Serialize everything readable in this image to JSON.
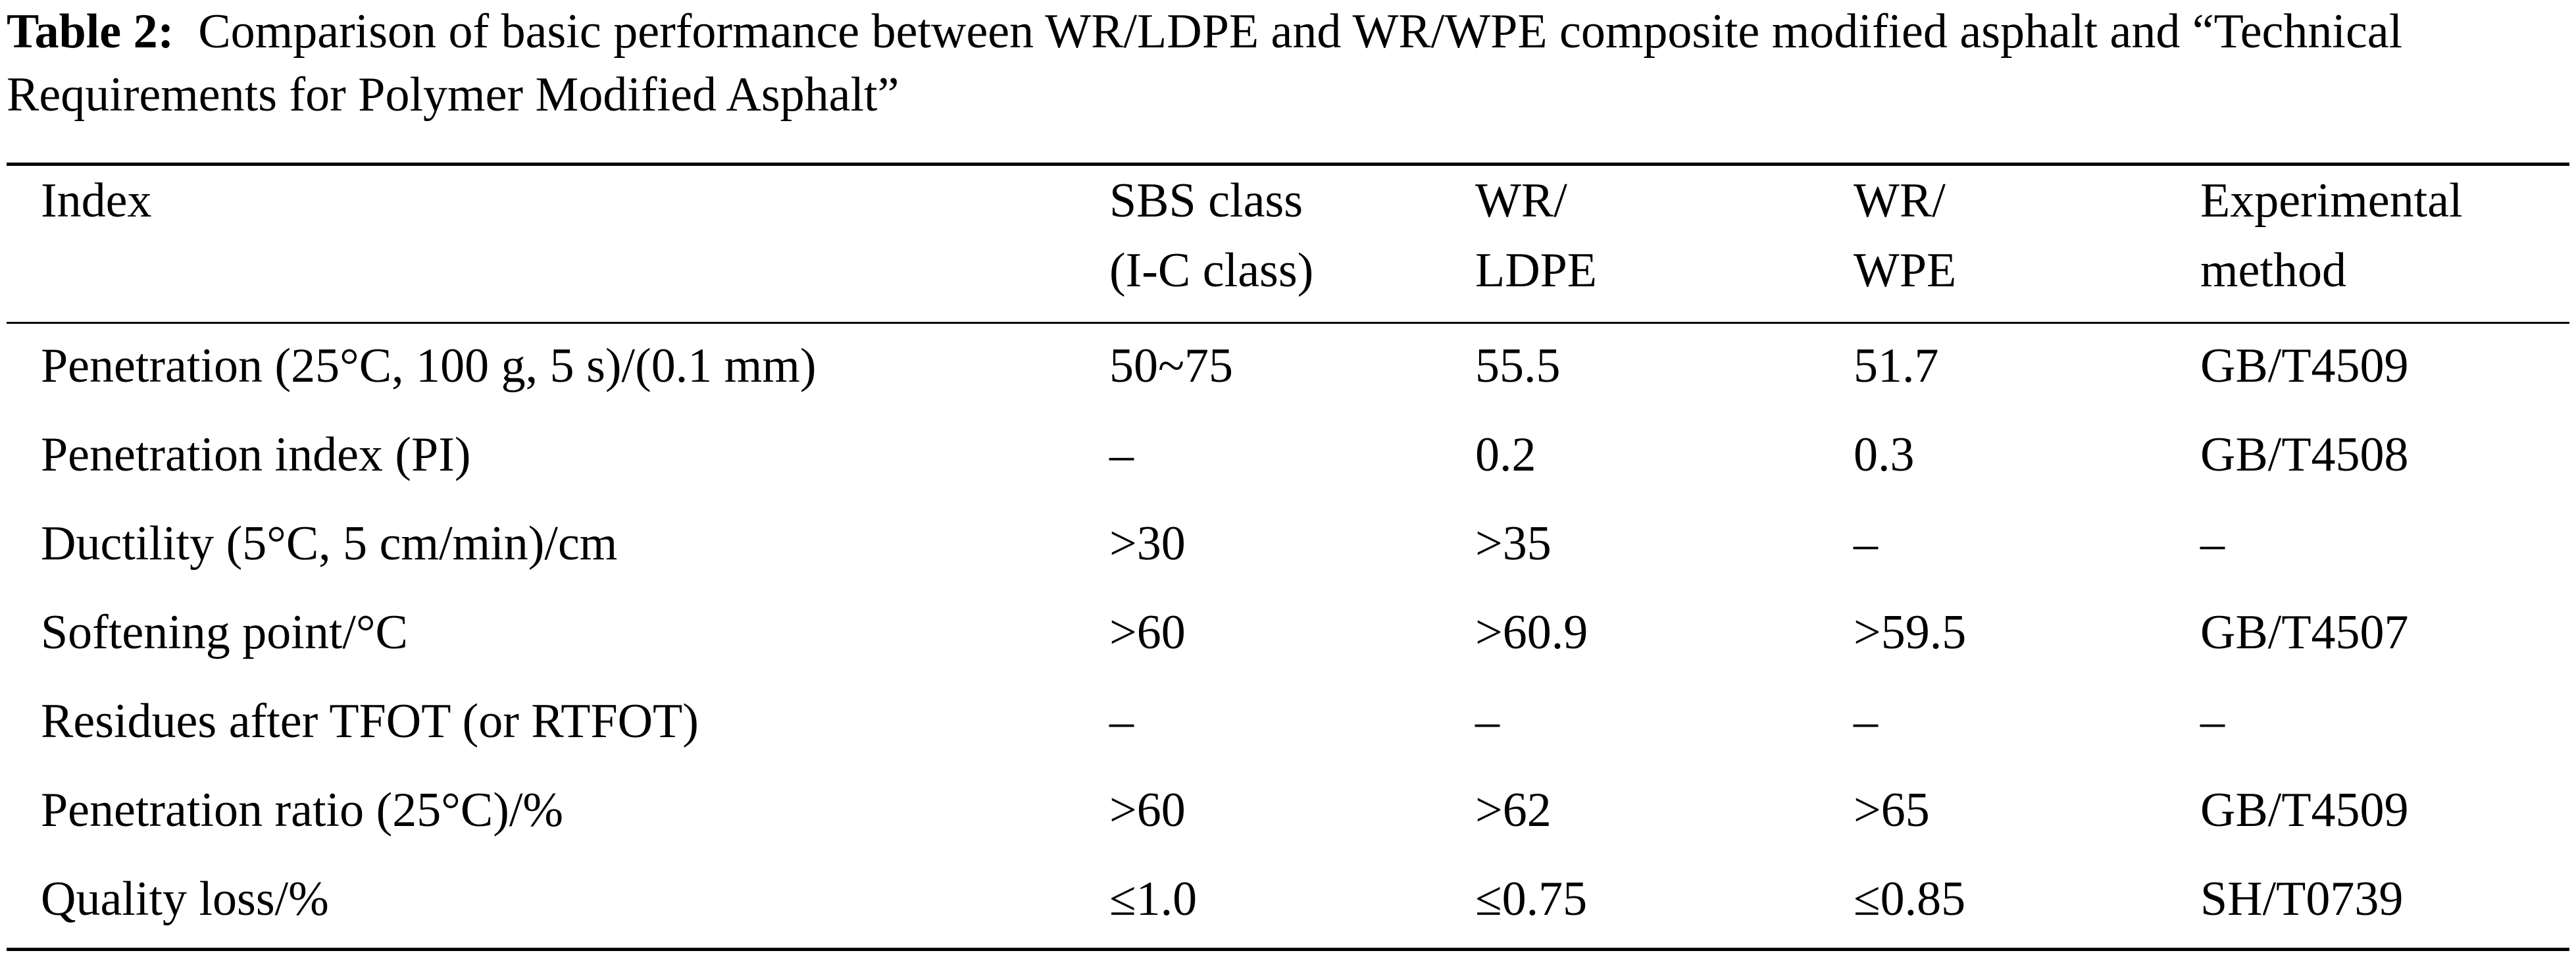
{
  "caption": {
    "label": "Table 2:",
    "text": "Comparison of basic performance between WR/LDPE and WR/WPE composite modified asphalt and “Technical Requirements for Polymer Modified Asphalt”"
  },
  "table": {
    "headers": [
      {
        "line1": "Index",
        "line2": ""
      },
      {
        "line1": "SBS class",
        "line2": "(I-C class)"
      },
      {
        "line1": "WR/",
        "line2": "LDPE"
      },
      {
        "line1": "WR/",
        "line2": "WPE"
      },
      {
        "line1": "Experimental",
        "line2": "method"
      }
    ],
    "rows": [
      [
        "Penetration (25°C, 100 g, 5 s)/(0.1 mm)",
        "50~75",
        "55.5",
        "51.7",
        "GB/T4509"
      ],
      [
        "Penetration index (PI)",
        "–",
        "0.2",
        "0.3",
        "GB/T4508"
      ],
      [
        "Ductility (5°C, 5 cm/min)/cm",
        ">30",
        ">35",
        "–",
        "–"
      ],
      [
        "Softening point/°C",
        ">60",
        ">60.9",
        ">59.5",
        "GB/T4507"
      ],
      [
        "Residues after TFOT (or RTFOT)",
        "–",
        "–",
        "–",
        "–"
      ],
      [
        "Penetration ratio (25°C)/%",
        ">60",
        ">62",
        ">65",
        "GB/T4509"
      ],
      [
        "Quality loss/%",
        "≤1.0",
        "≤0.75",
        "≤0.85",
        "SH/T0739"
      ]
    ]
  }
}
